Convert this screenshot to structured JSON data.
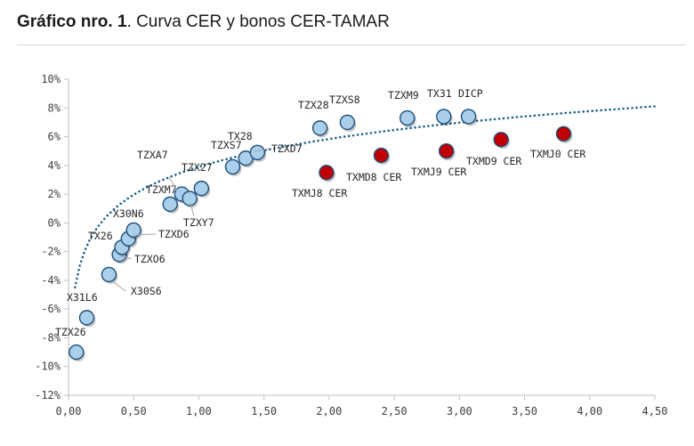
{
  "title": {
    "bold": "Gráfico nro. 1",
    "rest": ". Curva CER y bonos CER-TAMAR"
  },
  "chart_data": {
    "type": "scatter",
    "x_ticks": [
      "0,00",
      "0,50",
      "1,00",
      "1,50",
      "2,00",
      "2,50",
      "3,00",
      "3,50",
      "4,00",
      "4,50"
    ],
    "y_ticks": [
      "10%",
      "8%",
      "6%",
      "4%",
      "2%",
      "0%",
      "-2%",
      "-4%",
      "-6%",
      "-8%",
      "-10%",
      "-12%"
    ],
    "xlim": [
      0,
      4.5
    ],
    "ylim": [
      -12,
      10
    ],
    "grid": false,
    "colors": {
      "cer": "#a9cfea",
      "tamar": "#c00000",
      "edge": "#1f4e79",
      "trend": "#1f5f8b"
    },
    "series": [
      {
        "key": "cer",
        "points": [
          {
            "label": "TZX26",
            "x": 0.06,
            "y": -9.0
          },
          {
            "label": "X31L6",
            "x": 0.14,
            "y": -6.6
          },
          {
            "label": "X30S6",
            "x": 0.31,
            "y": -3.6
          },
          {
            "label": "TZXO6",
            "x": 0.39,
            "y": -2.2
          },
          {
            "label": "TX26",
            "x": 0.41,
            "y": -1.7
          },
          {
            "label": "TZXD6",
            "x": 0.46,
            "y": -1.1
          },
          {
            "label": "X30N6",
            "x": 0.5,
            "y": -0.5
          },
          {
            "label": "TZXM7",
            "x": 0.78,
            "y": 1.3
          },
          {
            "label": "TZXA7",
            "x": 0.87,
            "y": 2.0
          },
          {
            "label": "TZXY7",
            "x": 0.93,
            "y": 1.7
          },
          {
            "label": "TZX27",
            "x": 1.02,
            "y": 2.4
          },
          {
            "label": "TX28",
            "x": 1.26,
            "y": 3.9
          },
          {
            "label": "TZXS7",
            "x": 1.36,
            "y": 4.5
          },
          {
            "label": "TZXD7",
            "x": 1.45,
            "y": 4.9
          },
          {
            "label": "TZX28",
            "x": 1.93,
            "y": 6.6
          },
          {
            "label": "TZXS8",
            "x": 2.14,
            "y": 7.0
          },
          {
            "label": "TZXM9",
            "x": 2.6,
            "y": 7.3
          },
          {
            "label": "TX31",
            "x": 2.88,
            "y": 7.4
          },
          {
            "label": "DICP",
            "x": 3.07,
            "y": 7.4
          }
        ]
      },
      {
        "key": "tamar",
        "points": [
          {
            "label": "TXMJ8 CER",
            "x": 1.98,
            "y": 3.5
          },
          {
            "label": "TXMD8 CER",
            "x": 2.4,
            "y": 4.7
          },
          {
            "label": "TXMJ9 CER",
            "x": 2.9,
            "y": 5.0
          },
          {
            "label": "TXMD9 CER",
            "x": 3.32,
            "y": 5.8
          },
          {
            "label": "TXMJ0 CER",
            "x": 3.8,
            "y": 6.2
          }
        ]
      }
    ],
    "trendline": {
      "style": "dotted",
      "x_start": 0.05,
      "x_end": 4.5,
      "a": 3.9,
      "b": 2.8
    }
  }
}
